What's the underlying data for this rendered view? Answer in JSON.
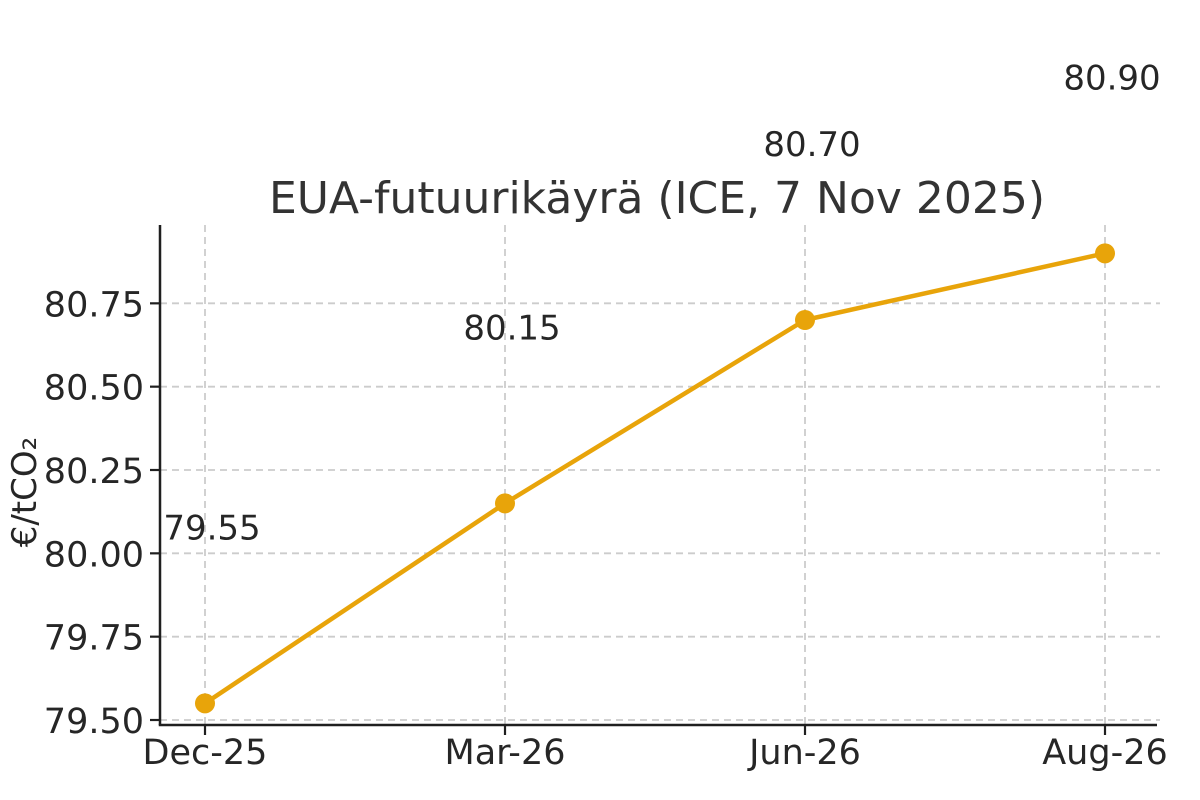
{
  "chart_data": {
    "type": "line",
    "title": "EUA-futuurikäyrä (ICE, 7 Nov 2025)",
    "ylabel": "€/tCO₂",
    "xlabel": "",
    "categories": [
      "Dec-25",
      "Mar-26",
      "Jun-26",
      "Aug-26"
    ],
    "values": [
      79.55,
      80.15,
      80.7,
      80.9
    ],
    "point_labels": [
      "79.55",
      "80.15",
      "80.70",
      "80.90"
    ],
    "ytick_labels": [
      "79.50",
      "79.75",
      "80.00",
      "80.25",
      "80.50",
      "80.75"
    ],
    "ylim": [
      79.485,
      80.985
    ],
    "grid": true,
    "legend_position": "none",
    "marker": "circle",
    "colors": {
      "line": "#E8A40A",
      "marker": "#E8A40A",
      "grid": "#cccccc",
      "axis": "#1f1f1f",
      "text": "#262626",
      "title": "#333333",
      "background": "#ffffff"
    }
  }
}
